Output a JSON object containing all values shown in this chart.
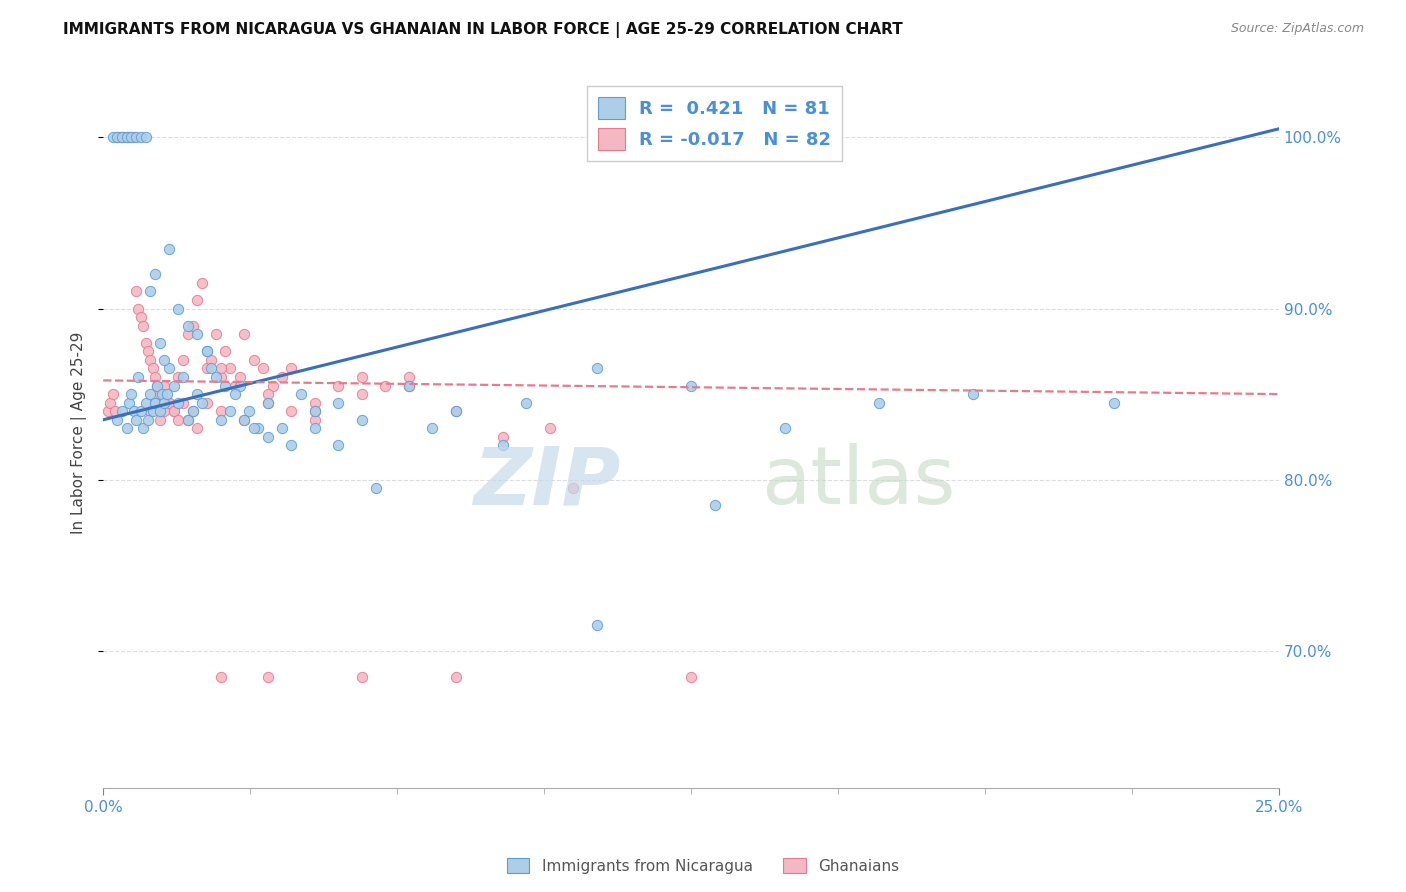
{
  "title": "IMMIGRANTS FROM NICARAGUA VS GHANAIAN IN LABOR FORCE | AGE 25-29 CORRELATION CHART",
  "source": "Source: ZipAtlas.com",
  "ylabel": "In Labor Force | Age 25-29",
  "legend_blue_r": "0.421",
  "legend_blue_n": "81",
  "legend_pink_r": "-0.017",
  "legend_pink_n": "82",
  "legend_label_blue": "Immigrants from Nicaragua",
  "legend_label_pink": "Ghanaians",
  "blue_color": "#aecde8",
  "pink_color": "#f4b8c4",
  "blue_edge_color": "#5a9fd4",
  "pink_edge_color": "#e87a90",
  "blue_line_color": "#3a6fbf",
  "pink_line_color": "#e87a90",
  "axis_label_color": "#4a90d9",
  "xmin": 0.0,
  "xmax": 25.0,
  "ymin": 62.0,
  "ymax": 103.5,
  "yticks": [
    70.0,
    80.0,
    90.0,
    100.0
  ],
  "xtick_positions": [
    0.0,
    25.0
  ],
  "xtick_labels": [
    "0.0%",
    "25.0%"
  ],
  "blue_line_x0": 0.0,
  "blue_line_y0": 83.5,
  "blue_line_x1": 25.0,
  "blue_line_y1": 100.5,
  "pink_line_x0": 0.0,
  "pink_line_y0": 85.8,
  "pink_line_x1": 25.0,
  "pink_line_y1": 85.0,
  "blue_scatter_x": [
    0.3,
    0.4,
    0.5,
    0.55,
    0.6,
    0.65,
    0.7,
    0.75,
    0.8,
    0.85,
    0.9,
    0.95,
    1.0,
    1.05,
    1.1,
    1.15,
    1.2,
    1.25,
    1.3,
    1.35,
    1.4,
    1.5,
    1.6,
    1.7,
    1.8,
    1.9,
    2.0,
    2.1,
    2.2,
    2.3,
    2.5,
    2.7,
    2.9,
    3.1,
    3.3,
    3.5,
    3.8,
    4.2,
    4.5,
    5.0,
    5.5,
    6.5,
    7.5,
    9.0,
    10.5,
    12.5,
    14.5,
    16.5,
    18.5,
    21.5,
    0.2,
    0.3,
    0.4,
    0.5,
    0.6,
    0.7,
    0.8,
    0.9,
    1.0,
    1.1,
    1.2,
    1.3,
    1.4,
    1.6,
    1.8,
    2.0,
    2.2,
    2.4,
    2.6,
    2.8,
    3.0,
    3.2,
    3.5,
    4.0,
    4.5,
    5.0,
    5.8,
    7.0,
    8.5,
    10.5,
    13.0
  ],
  "blue_scatter_y": [
    83.5,
    84.0,
    83.0,
    84.5,
    85.0,
    84.0,
    83.5,
    86.0,
    84.0,
    83.0,
    84.5,
    83.5,
    85.0,
    84.0,
    84.5,
    85.5,
    84.0,
    85.0,
    84.5,
    85.0,
    86.5,
    85.5,
    84.5,
    86.0,
    83.5,
    84.0,
    85.0,
    84.5,
    87.5,
    86.5,
    83.5,
    84.0,
    85.5,
    84.0,
    83.0,
    84.5,
    83.0,
    85.0,
    84.0,
    84.5,
    83.5,
    85.5,
    84.0,
    84.5,
    86.5,
    85.5,
    83.0,
    84.5,
    85.0,
    84.5,
    100.0,
    100.0,
    100.0,
    100.0,
    100.0,
    100.0,
    100.0,
    100.0,
    91.0,
    92.0,
    88.0,
    87.0,
    93.5,
    90.0,
    89.0,
    88.5,
    87.5,
    86.0,
    85.5,
    85.0,
    83.5,
    83.0,
    82.5,
    82.0,
    83.0,
    82.0,
    79.5,
    83.0,
    82.0,
    71.5,
    78.5
  ],
  "pink_scatter_x": [
    0.1,
    0.15,
    0.2,
    0.25,
    0.3,
    0.35,
    0.4,
    0.45,
    0.5,
    0.55,
    0.6,
    0.65,
    0.7,
    0.75,
    0.8,
    0.85,
    0.9,
    0.95,
    1.0,
    1.05,
    1.1,
    1.15,
    1.2,
    1.3,
    1.4,
    1.5,
    1.6,
    1.7,
    1.8,
    1.9,
    2.0,
    2.1,
    2.2,
    2.3,
    2.4,
    2.5,
    2.6,
    2.7,
    2.8,
    2.9,
    3.0,
    3.2,
    3.4,
    3.6,
    3.8,
    4.0,
    4.5,
    5.0,
    5.5,
    6.0,
    6.5,
    1.0,
    1.1,
    1.2,
    1.3,
    1.4,
    1.5,
    1.6,
    1.7,
    1.8,
    1.9,
    2.0,
    2.2,
    2.5,
    3.0,
    3.5,
    4.0,
    4.5,
    2.5,
    3.5,
    4.5,
    5.5,
    6.5,
    7.5,
    8.5,
    9.5,
    2.5,
    3.5,
    5.5,
    7.5,
    10.0,
    12.5
  ],
  "pink_scatter_y": [
    84.0,
    84.5,
    85.0,
    84.0,
    100.0,
    100.0,
    100.0,
    100.0,
    100.0,
    100.0,
    100.0,
    100.0,
    91.0,
    90.0,
    89.5,
    89.0,
    88.0,
    87.5,
    87.0,
    86.5,
    86.0,
    85.5,
    85.0,
    85.5,
    84.5,
    84.0,
    86.0,
    87.0,
    88.5,
    89.0,
    90.5,
    91.5,
    86.5,
    87.0,
    88.5,
    86.0,
    87.5,
    86.5,
    85.5,
    86.0,
    88.5,
    87.0,
    86.5,
    85.5,
    86.0,
    86.5,
    84.5,
    85.5,
    85.0,
    85.5,
    86.0,
    84.0,
    84.5,
    83.5,
    84.0,
    84.5,
    84.0,
    83.5,
    84.5,
    83.5,
    84.0,
    83.0,
    84.5,
    84.0,
    83.5,
    84.5,
    84.0,
    83.5,
    86.5,
    85.0,
    84.0,
    86.0,
    85.5,
    84.0,
    82.5,
    83.0,
    68.5,
    68.5,
    68.5,
    68.5,
    79.5,
    68.5
  ]
}
